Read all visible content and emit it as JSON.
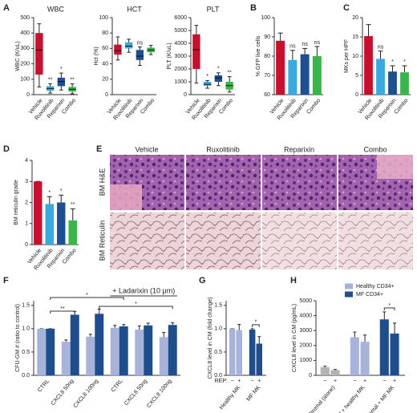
{
  "chart_data": [
    {
      "type": "box",
      "panel": "A",
      "title": "WBC",
      "ylabel": "WBC (K/uL)",
      "categories": [
        "Vehicle",
        "Ruxolitinib",
        "Reparixin",
        "Combo"
      ],
      "colors": [
        "#c8102e",
        "#3aa9e0",
        "#1d4f91",
        "#3ab54a"
      ],
      "boxes": [
        {
          "min": 50,
          "q1": 130,
          "median": 290,
          "q3": 400,
          "max": 460
        },
        {
          "min": 10,
          "q1": 25,
          "median": 40,
          "q3": 55,
          "max": 70
        },
        {
          "min": 30,
          "q1": 55,
          "median": 85,
          "q3": 110,
          "max": 140
        },
        {
          "min": 5,
          "q1": 20,
          "median": 35,
          "q3": 50,
          "max": 70
        }
      ],
      "annotations": [
        null,
        "**",
        "*",
        "**"
      ],
      "ylim": [
        0,
        500
      ],
      "yticks": [
        0,
        100,
        200,
        300,
        400,
        500
      ]
    },
    {
      "type": "box",
      "title": "HCT",
      "ylabel": "Hct (%)",
      "categories": [
        "Vehicle",
        "Ruxolitinib",
        "Reparixin",
        "Combo"
      ],
      "colors": [
        "#c8102e",
        "#3aa9e0",
        "#1d4f91",
        "#3ab54a"
      ],
      "boxes": [
        {
          "min": 45,
          "q1": 52,
          "median": 57,
          "q3": 65,
          "max": 75
        },
        {
          "min": 55,
          "q1": 60,
          "median": 63,
          "q3": 68,
          "max": 72
        },
        {
          "min": 38,
          "q1": 45,
          "median": 50,
          "q3": 58,
          "max": 62
        },
        {
          "min": 52,
          "q1": 55,
          "median": 58,
          "q3": 61,
          "max": 64
        }
      ],
      "annotations": [
        null,
        null,
        "ns",
        null
      ],
      "ylim": [
        0,
        100
      ],
      "yticks": [
        0,
        20,
        40,
        60,
        80,
        100
      ]
    },
    {
      "type": "box",
      "title": "PLT",
      "ylabel": "PLT (K/uL)",
      "categories": [
        "Vehicle",
        "Ruxolitinib",
        "Reparixin",
        "Combo"
      ],
      "colors": [
        "#c8102e",
        "#3aa9e0",
        "#1d4f91",
        "#3ab54a"
      ],
      "boxes": [
        {
          "min": 900,
          "q1": 2000,
          "median": 3500,
          "q3": 4700,
          "max": 5400
        },
        {
          "min": 500,
          "q1": 700,
          "median": 800,
          "q3": 1000,
          "max": 1100
        },
        {
          "min": 700,
          "q1": 1000,
          "median": 1300,
          "q3": 1500,
          "max": 1700
        },
        {
          "min": 200,
          "q1": 400,
          "median": 700,
          "q3": 1000,
          "max": 1400
        }
      ],
      "annotations": [
        null,
        "*",
        "*",
        "**"
      ],
      "ylim": [
        0,
        6000
      ],
      "yticks": [
        0,
        1000,
        2000,
        3000,
        4000,
        5000,
        6000
      ]
    },
    {
      "type": "bar",
      "panel": "B",
      "ylabel": "% GFP live cells",
      "categories": [
        "Vehicle",
        "Ruxolitinib",
        "Reparixin",
        "Combo"
      ],
      "colors": [
        "#c8102e",
        "#3aa9e0",
        "#1d4f91",
        "#3ab54a"
      ],
      "values": [
        88,
        78,
        81,
        80
      ],
      "errors": [
        4,
        5,
        3,
        5
      ],
      "annotations": [
        null,
        "ns",
        "ns",
        "ns"
      ],
      "ylim": [
        60,
        100
      ],
      "yticks": [
        60,
        70,
        80,
        90,
        100
      ]
    },
    {
      "type": "bar",
      "panel": "C",
      "ylabel": "MKs per HPF",
      "categories": [
        "Vehicle",
        "Ruxolitinib",
        "Reparixin",
        "Combo"
      ],
      "colors": [
        "#c8102e",
        "#3aa9e0",
        "#1d4f91",
        "#3ab54a"
      ],
      "values": [
        15.2,
        9.3,
        6.0,
        5.8
      ],
      "errors": [
        3,
        2,
        1.5,
        1.7
      ],
      "annotations": [
        null,
        "ns",
        "*",
        "*"
      ],
      "ylim": [
        0,
        20
      ],
      "yticks": [
        0,
        5,
        10,
        15,
        20
      ]
    },
    {
      "type": "bar",
      "panel": "D",
      "ylabel": "BM reticulin grade",
      "categories": [
        "Vehicle",
        "Ruxolitinib",
        "Reparixin",
        "Combo"
      ],
      "colors": [
        "#c8102e",
        "#3aa9e0",
        "#1d4f91",
        "#3ab54a"
      ],
      "values": [
        3,
        1.93,
        2.0,
        1.15
      ],
      "errors": [
        0,
        0.35,
        0.35,
        0.55
      ],
      "annotations": [
        null,
        "*",
        "*",
        "**"
      ],
      "ylim": [
        0,
        4
      ],
      "yticks": [
        0,
        1,
        2,
        3,
        4
      ]
    },
    {
      "type": "grouped-bar",
      "panel": "F",
      "ylabel": "CFU-GM # (ratio to control)",
      "categories": [
        "CTRL",
        "CXCL8 50ng",
        "CXCL8 100ng",
        "CTRL",
        "CXCL8 50ng",
        "CXCL8 100ng"
      ],
      "series": [
        {
          "name": "Healthy CD34+",
          "color": "#a7b3d8",
          "values": [
            1.0,
            0.72,
            0.83,
            1.02,
            0.98,
            0.82
          ],
          "errors": [
            0,
            0.04,
            0.05,
            0.05,
            0.08,
            0.1
          ]
        },
        {
          "name": "MF CD34+",
          "color": "#1f4e8c",
          "values": [
            1.0,
            1.3,
            1.32,
            1.05,
            1.07,
            1.08
          ],
          "errors": [
            0,
            0.07,
            0.1,
            0.04,
            0.05,
            0.05
          ]
        }
      ],
      "annotation": "+ Ladarixin (10 μm)",
      "brackets": [
        "*",
        "**",
        "*"
      ],
      "ylim": [
        0,
        1.6
      ],
      "yticks": [
        {
          "value": 0,
          "label": "0.0"
        },
        {
          "value": 0.5,
          "label": "0.5"
        },
        {
          "value": 1,
          "label": "1.0"
        },
        {
          "value": 1.5,
          "label": "1.5"
        }
      ]
    },
    {
      "type": "paired",
      "panel": "G",
      "ylabel": "CXCL8 level in CM (fold change)",
      "categories": [
        "Healthy MK",
        "MF MK"
      ],
      "condition_label": "REP:",
      "conditions": [
        "−",
        "+"
      ],
      "colors": [
        "#a7b3d8",
        "#1f4e8c"
      ],
      "values": [
        [
          1.0,
          0.97
        ],
        [
          0.98,
          0.68
        ]
      ],
      "errors": [
        [
          0,
          0.12
        ],
        [
          0.02,
          0.15
        ]
      ],
      "bracket": "*",
      "ylim": [
        0,
        1.6
      ],
      "yticks": [
        {
          "value": 0,
          "label": "0.0"
        },
        {
          "value": 0.5,
          "label": "0.5"
        },
        {
          "value": 1,
          "label": "1.0"
        },
        {
          "value": 1.5,
          "label": "1.5"
        }
      ]
    },
    {
      "type": "paired",
      "panel": "H",
      "ylabel": "CXCL8 level in CM (pg/mL)",
      "categories": [
        "Stromal (alone)",
        "Stromal + healthy MK",
        "Stromal + MF MK"
      ],
      "conditions": [
        "−",
        "+"
      ],
      "colors": [
        "#b3b3b3",
        "#a7b3d8",
        "#1f4e8c"
      ],
      "values": [
        [
          550,
          350
        ],
        [
          2550,
          2250
        ],
        [
          3750,
          2800
        ]
      ],
      "errors": [
        [
          60,
          40
        ],
        [
          350,
          450
        ],
        [
          500,
          700
        ]
      ],
      "bracket": "*",
      "ylim": [
        0,
        5000
      ],
      "yticks": [
        0,
        1000,
        2000,
        3000,
        4000,
        5000
      ]
    }
  ],
  "figure_e": {
    "panel": "E",
    "columns": [
      "Vehicle",
      "Ruxolitinib",
      "Reparixin",
      "Combo"
    ],
    "rows": [
      "BM H&E",
      "BM Reticulin"
    ]
  }
}
